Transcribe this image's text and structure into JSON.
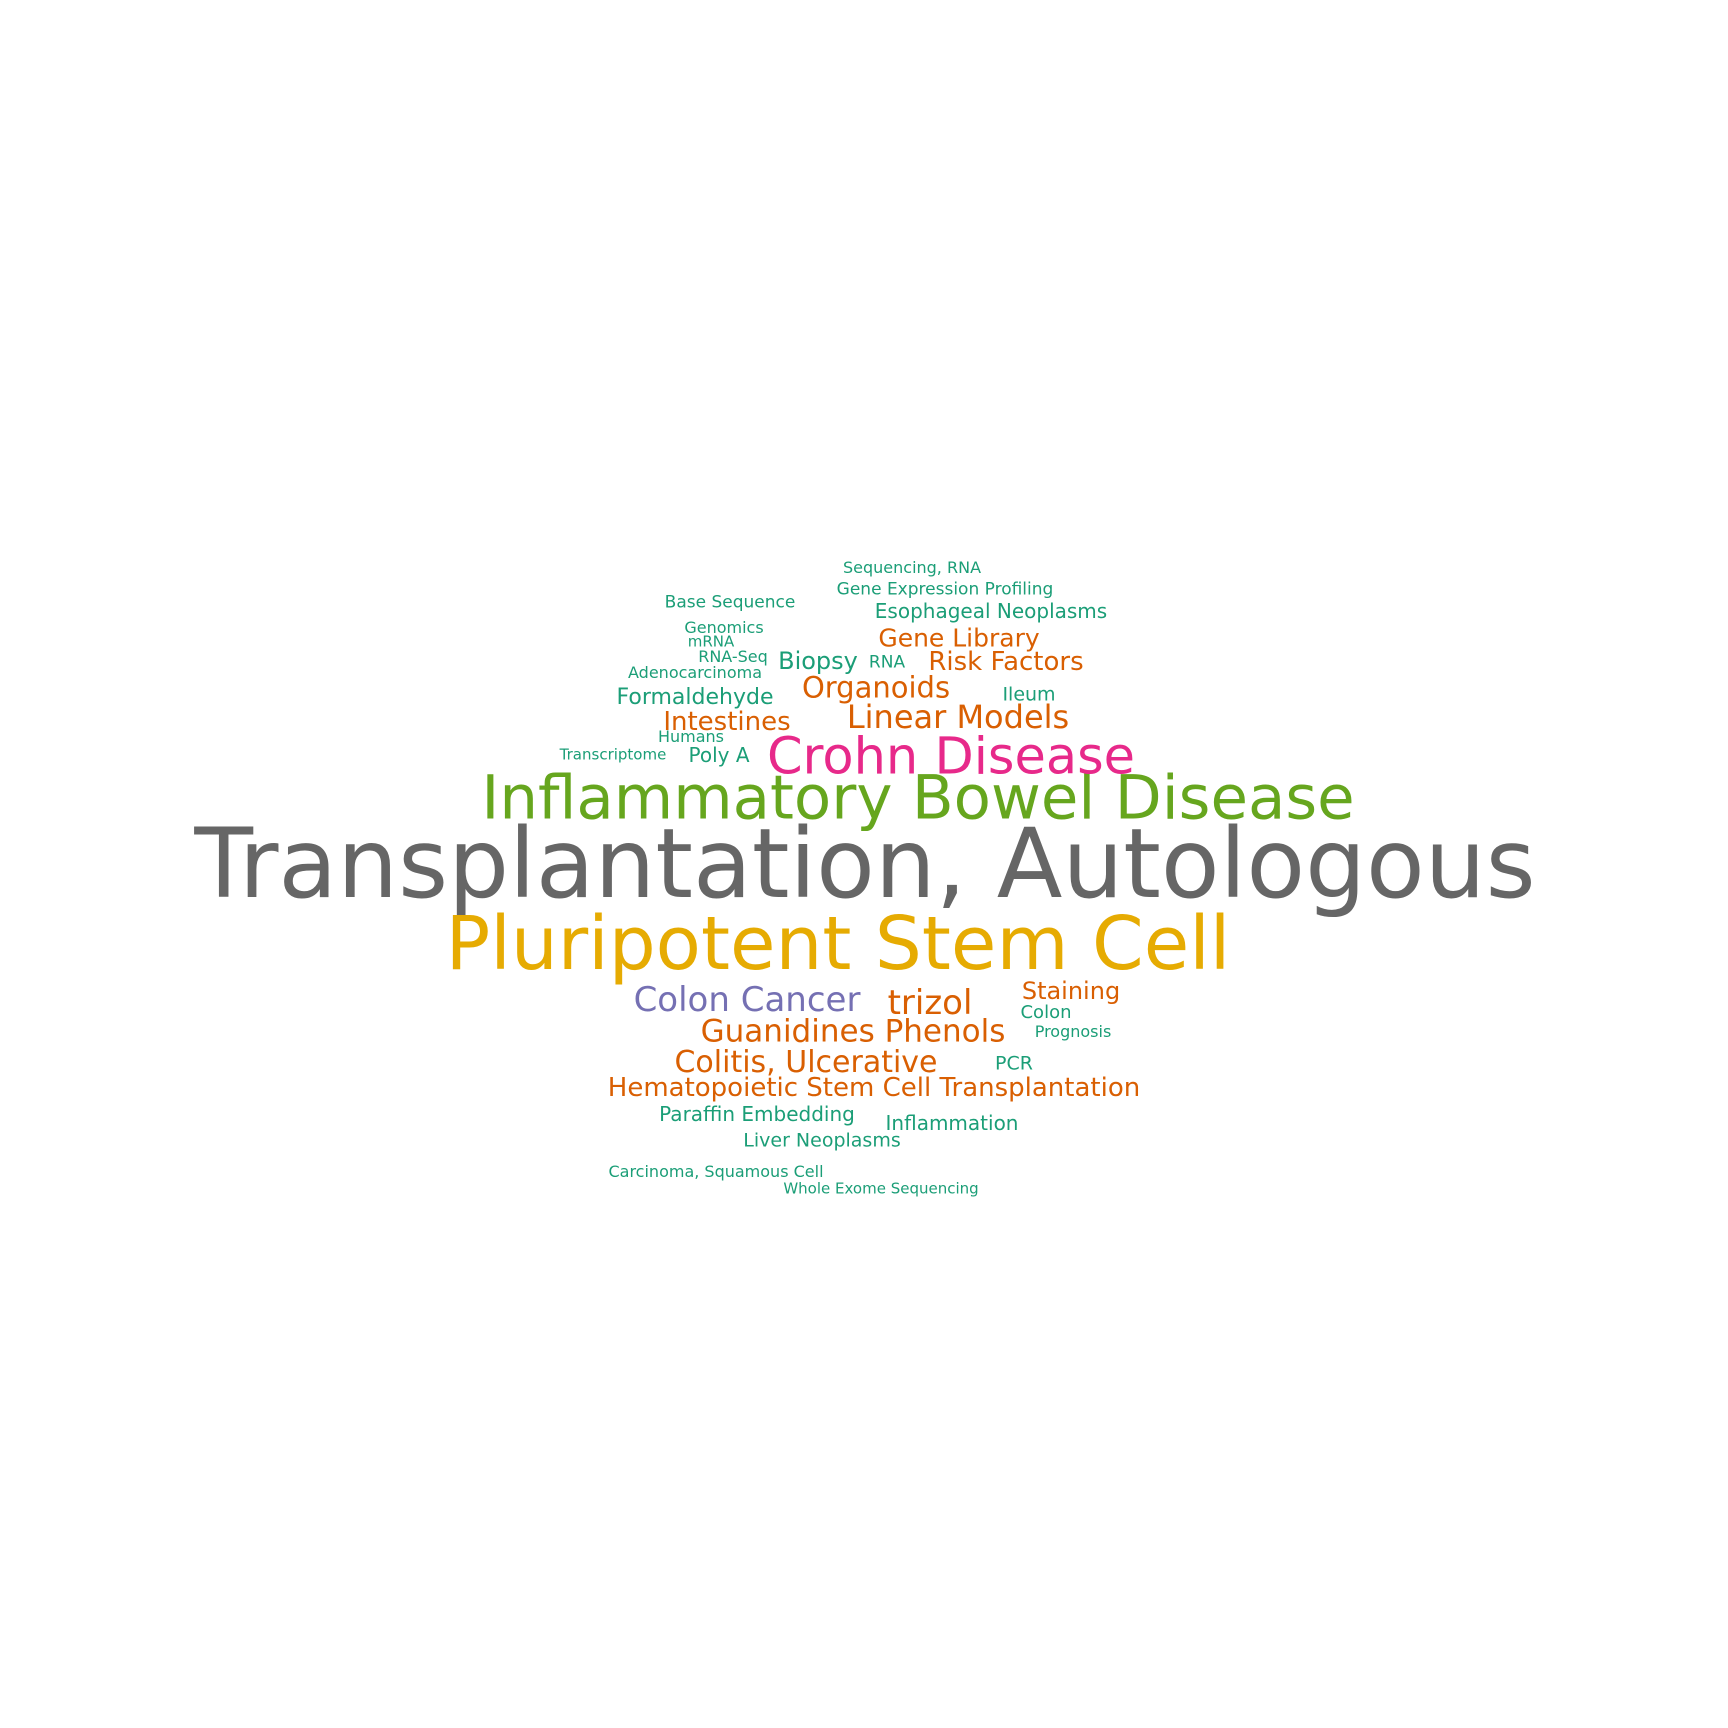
{
  "words": [
    {
      "text": "Transplantation, Autologous",
      "color": "#666666"
    },
    {
      "text": "Pluripotent Stem Cell",
      "color": "#E6AB02"
    },
    {
      "text": "Inflammatory Bowel Disease",
      "color": "#66A61E"
    },
    {
      "text": "Crohn Disease",
      "color": "#E7298A"
    },
    {
      "text": "Colon Cancer",
      "color": "#7570B3"
    },
    {
      "text": "trizol",
      "color": "#D95F02"
    },
    {
      "text": "Guanidines Phenols",
      "color": "#D95F02"
    },
    {
      "text": "Colitis, Ulcerative",
      "color": "#D95F02"
    },
    {
      "text": "Linear Models",
      "color": "#D95F02"
    },
    {
      "text": "Organoids",
      "color": "#D95F02"
    },
    {
      "text": "Hematopoietic Stem Cell Transplantation",
      "color": "#D95F02"
    },
    {
      "text": "Intestines",
      "color": "#D95F02"
    },
    {
      "text": "Risk Factors",
      "color": "#D95F02"
    },
    {
      "text": "Gene Library",
      "color": "#D95F02"
    },
    {
      "text": "Staining",
      "color": "#D95F02"
    },
    {
      "text": "Biopsy",
      "color": "#1B9E77"
    },
    {
      "text": "Formaldehyde",
      "color": "#1B9E77"
    },
    {
      "text": "Esophageal Neoplasms",
      "color": "#1B9E77"
    },
    {
      "text": "Paraffin Embedding",
      "color": "#1B9E77"
    },
    {
      "text": "Inflammation",
      "color": "#1B9E77"
    },
    {
      "text": "Liver Neoplasms",
      "color": "#1B9E77"
    },
    {
      "text": "Poly A",
      "color": "#1B9E77"
    },
    {
      "text": "PCR",
      "color": "#1B9E77"
    },
    {
      "text": "Ileum",
      "color": "#1B9E77"
    },
    {
      "text": "Colon",
      "color": "#1B9E77"
    },
    {
      "text": "RNA",
      "color": "#1B9E77"
    },
    {
      "text": "Gene Expression Profiling",
      "color": "#1B9E77"
    },
    {
      "text": "Base Sequence",
      "color": "#1B9E77"
    },
    {
      "text": "Genomics",
      "color": "#1B9E77"
    },
    {
      "text": "Prognosis",
      "color": "#1B9E77"
    },
    {
      "text": "Sequencing, RNA",
      "color": "#1B9E77"
    },
    {
      "text": "Adenocarcinoma",
      "color": "#1B9E77"
    },
    {
      "text": "RNA-Seq",
      "color": "#1B9E77"
    },
    {
      "text": "Carcinoma, Squamous Cell",
      "color": "#1B9E77"
    },
    {
      "text": "Humans",
      "color": "#1B9E77"
    },
    {
      "text": "mRNA",
      "color": "#1B9E77"
    },
    {
      "text": "Transcriptome",
      "color": "#1B9E77"
    },
    {
      "text": "Whole Exome Sequencing",
      "color": "#1B9E77"
    }
  ]
}
